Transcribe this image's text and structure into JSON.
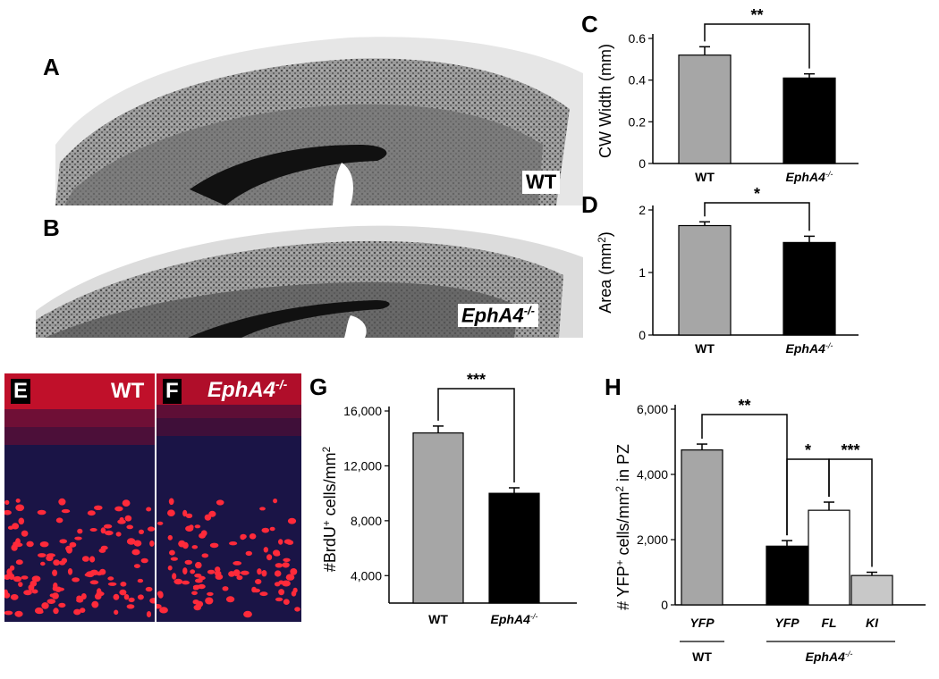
{
  "panels": {
    "A": {
      "letter": "A"
    },
    "B": {
      "letter": "B",
      "genotype_label": "EphA4",
      "genotype_sup": "-/-"
    },
    "A_label": "WT",
    "E": {
      "letter": "E",
      "label": "WT"
    },
    "F": {
      "letter": "F",
      "label": "EphA4",
      "sup": "-/-"
    }
  },
  "chart_data": [
    {
      "panel": "C",
      "type": "bar",
      "categories": [
        "WT",
        "EphA4-/-"
      ],
      "values": [
        0.52,
        0.41
      ],
      "errors": [
        0.04,
        0.02
      ],
      "colors": [
        "#a6a6a6",
        "#000000"
      ],
      "ylabel": "CW Width (mm)",
      "ylim": [
        0,
        0.6
      ],
      "yticks": [
        0,
        0.2,
        0.4,
        0.6
      ],
      "ytick_labels": [
        "0",
        "0.2",
        "0.4",
        "0.6"
      ],
      "significance": [
        {
          "from": 0,
          "to": 1,
          "label": "**"
        }
      ]
    },
    {
      "panel": "D",
      "type": "bar",
      "categories": [
        "WT",
        "EphA4-/-"
      ],
      "values": [
        1.75,
        1.48
      ],
      "errors": [
        0.06,
        0.1
      ],
      "colors": [
        "#a6a6a6",
        "#000000"
      ],
      "ylabel": "Area (mm2)",
      "ylim": [
        0,
        2
      ],
      "yticks": [
        0,
        1,
        2
      ],
      "ytick_labels": [
        "0",
        "1",
        "2"
      ],
      "significance": [
        {
          "from": 0,
          "to": 1,
          "label": "*"
        }
      ]
    },
    {
      "panel": "G",
      "type": "bar",
      "categories": [
        "WT",
        "EphA4-/-"
      ],
      "values": [
        14400,
        10000
      ],
      "errors": [
        500,
        400
      ],
      "colors": [
        "#a6a6a6",
        "#000000"
      ],
      "ylabel": "#BrdU+ cells/mm2",
      "ylim": [
        2000,
        16000
      ],
      "yticks": [
        4000,
        8000,
        12000,
        16000
      ],
      "ytick_labels": [
        "4,000",
        "8,000",
        "12,000",
        "16,000"
      ],
      "significance": [
        {
          "from": 0,
          "to": 1,
          "label": "***"
        }
      ]
    },
    {
      "panel": "H",
      "type": "bar",
      "categories": [
        "YFP",
        "YFP",
        "FL",
        "KI"
      ],
      "values": [
        4750,
        1800,
        2900,
        900
      ],
      "errors": [
        180,
        170,
        250,
        100
      ],
      "colors": [
        "#a6a6a6",
        "#000000",
        "#ffffff",
        "#c8c8c8"
      ],
      "ylabel": "# YFP+ cells/mm2 in PZ",
      "ylim": [
        0,
        6000
      ],
      "yticks": [
        0,
        2000,
        4000,
        6000
      ],
      "ytick_labels": [
        "0",
        "2,000",
        "4,000",
        "6,000"
      ],
      "groups": [
        {
          "label": "WT",
          "bars": [
            0
          ]
        },
        {
          "label": "EphA4-/-",
          "bars": [
            1,
            2,
            3
          ]
        }
      ],
      "significance": [
        {
          "from": 0,
          "to": 1,
          "label": "**"
        },
        {
          "from": 1,
          "to": 2,
          "label": "*"
        },
        {
          "from": 2,
          "to": 3,
          "label": "***"
        }
      ]
    }
  ],
  "chart_text": {
    "C": {
      "letter": "C",
      "ylabel": "CW Width (mm)",
      "cat_wt": "WT",
      "cat_ko": "EphA4",
      "cat_ko_sup": "-/-"
    },
    "D": {
      "letter": "D",
      "ylabel_main": "Area (mm",
      "ylabel_sup": "2",
      "ylabel_end": ")",
      "cat_wt": "WT",
      "cat_ko": "EphA4",
      "cat_ko_sup": "-/-"
    },
    "G": {
      "letter": "G",
      "ylabel_a": "#BrdU",
      "ylabel_sup1": "+",
      "ylabel_b": " cells/mm",
      "ylabel_sup2": "2",
      "cat_wt": "WT",
      "cat_ko": "EphA4",
      "cat_ko_sup": "-/-"
    },
    "H": {
      "letter": "H",
      "ylabel_a": "# YFP",
      "ylabel_sup1": "+",
      "ylabel_b": " cells/mm",
      "ylabel_sup2": "2",
      "ylabel_c": " in PZ",
      "group_wt": "WT",
      "group_ko": "EphA4",
      "group_ko_sup": "-/-"
    }
  }
}
